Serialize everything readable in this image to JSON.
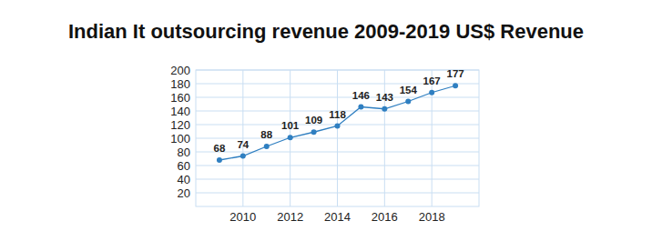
{
  "chart_data": {
    "type": "line",
    "title": "Indian It outsourcing revenue 2009-2019 US$ Revenue",
    "x": [
      2009,
      2010,
      2011,
      2012,
      2013,
      2014,
      2015,
      2016,
      2017,
      2018,
      2019
    ],
    "values": [
      68,
      74,
      88,
      101,
      109,
      118,
      146,
      143,
      154,
      167,
      177
    ],
    "color": "#2f7fc1",
    "marker": "circle",
    "xlim": [
      2008,
      2020
    ],
    "xticks": [
      2010,
      2012,
      2014,
      2016,
      2018
    ],
    "ylim": [
      0,
      200
    ],
    "yticks": [
      20,
      40,
      60,
      80,
      100,
      120,
      140,
      160,
      180,
      200
    ],
    "grid": true,
    "data_labels": true
  }
}
